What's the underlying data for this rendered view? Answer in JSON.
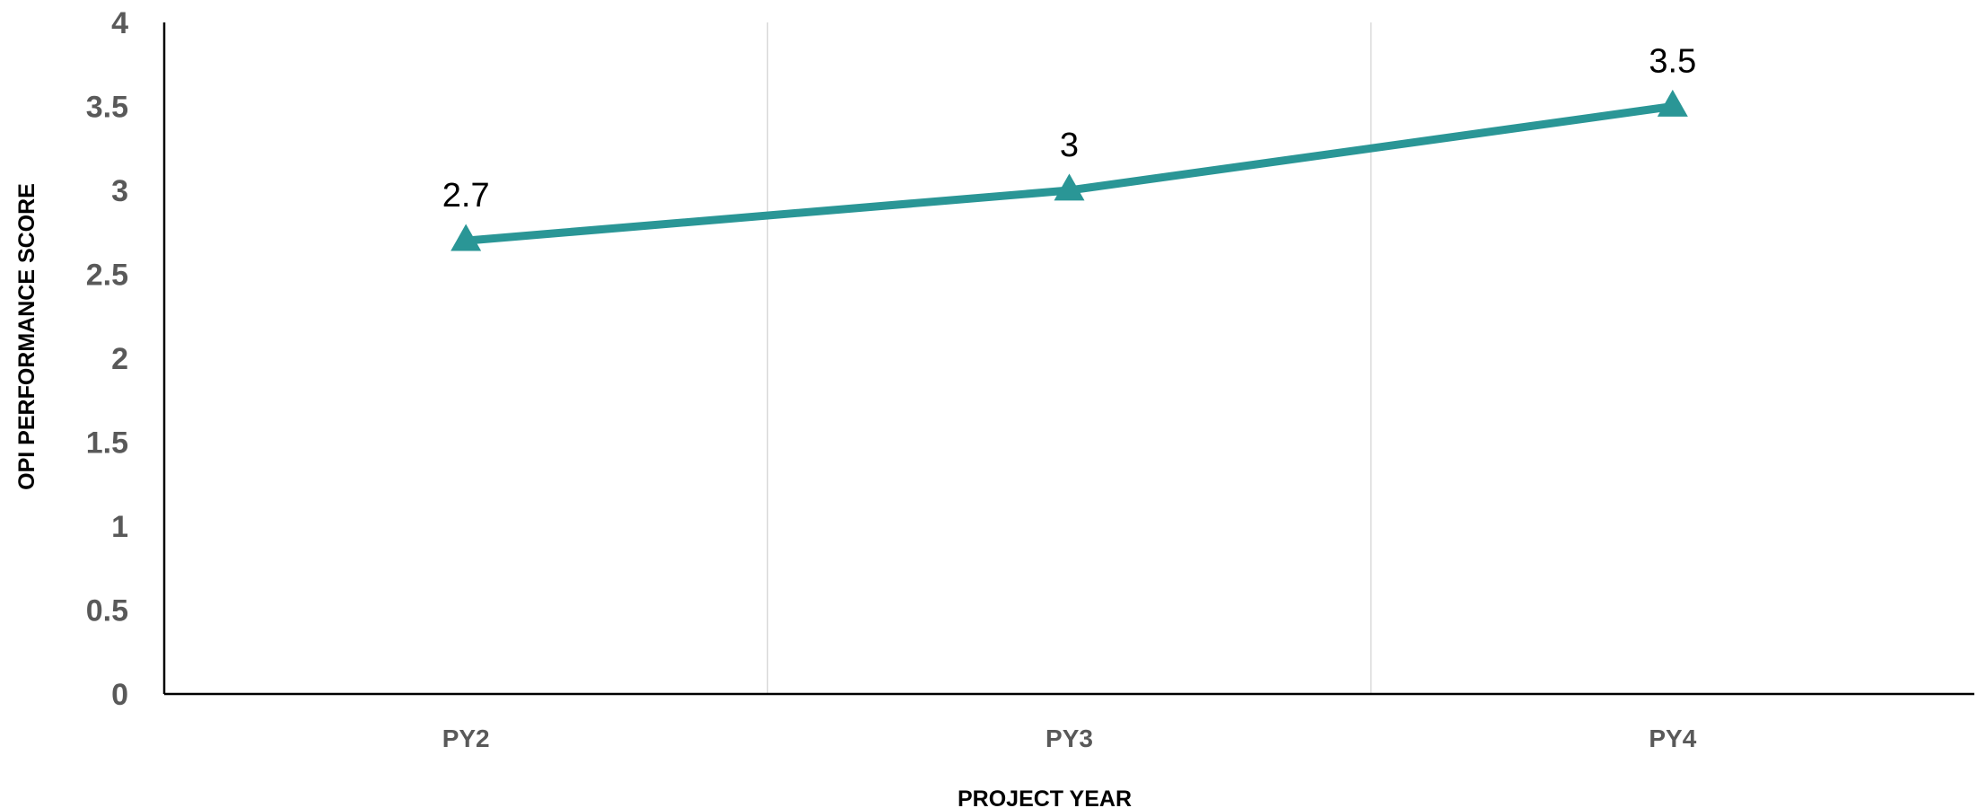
{
  "chart_data": {
    "type": "line",
    "categories": [
      "PY2",
      "PY3",
      "PY4"
    ],
    "series": [
      {
        "values": [
          2.7,
          3,
          3.5
        ],
        "labels": [
          "2.7",
          "3",
          "3.5"
        ],
        "color": "#2a9696",
        "marker": "triangle"
      }
    ],
    "xlabel": "PROJECT YEAR",
    "ylabel": "OPI PERFORMANCE SCORE",
    "ylim": [
      0,
      4
    ],
    "yticks": [
      "0",
      "0.5",
      "1",
      "1.5",
      "2",
      "2.5",
      "3",
      "3.5",
      "4"
    ],
    "grid": "vertical-between-categories",
    "legend": "none"
  }
}
